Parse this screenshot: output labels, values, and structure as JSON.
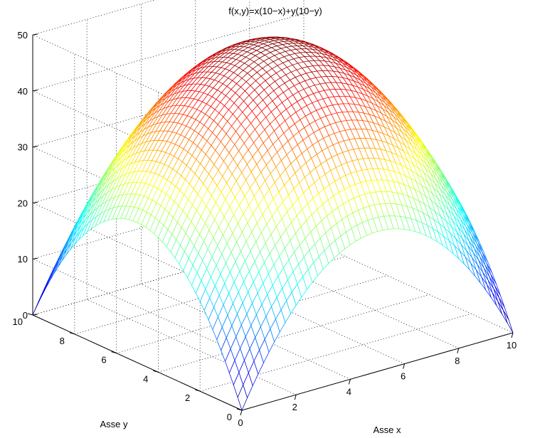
{
  "chart_data": {
    "type": "surface",
    "title": "f(x,y)=x(10−x)+y(10−y)",
    "xlabel": "Asse x",
    "ylabel": "Asse y",
    "zlabel": "",
    "xlim": [
      0,
      10
    ],
    "ylim": [
      0,
      10
    ],
    "zlim": [
      0,
      50
    ],
    "x_ticks": [
      "0",
      "2",
      "4",
      "6",
      "8",
      "10"
    ],
    "y_ticks": [
      "0",
      "2",
      "4",
      "6",
      "8",
      "10"
    ],
    "z_ticks": [
      "0",
      "10",
      "20",
      "30",
      "40",
      "50"
    ],
    "function": "x*(10-x)+y*(10-y)",
    "grid_steps": 50,
    "grid": true,
    "colormap": "jet",
    "render": "mesh",
    "values": {
      "f(0,0)": 0,
      "f(10,0)": 0,
      "f(0,10)": 0,
      "f(10,10)": 0,
      "f(5,0)": 25,
      "f(0,5)": 25,
      "f(5,10)": 25,
      "f(10,5)": 25,
      "f(5,5)": 50
    }
  }
}
